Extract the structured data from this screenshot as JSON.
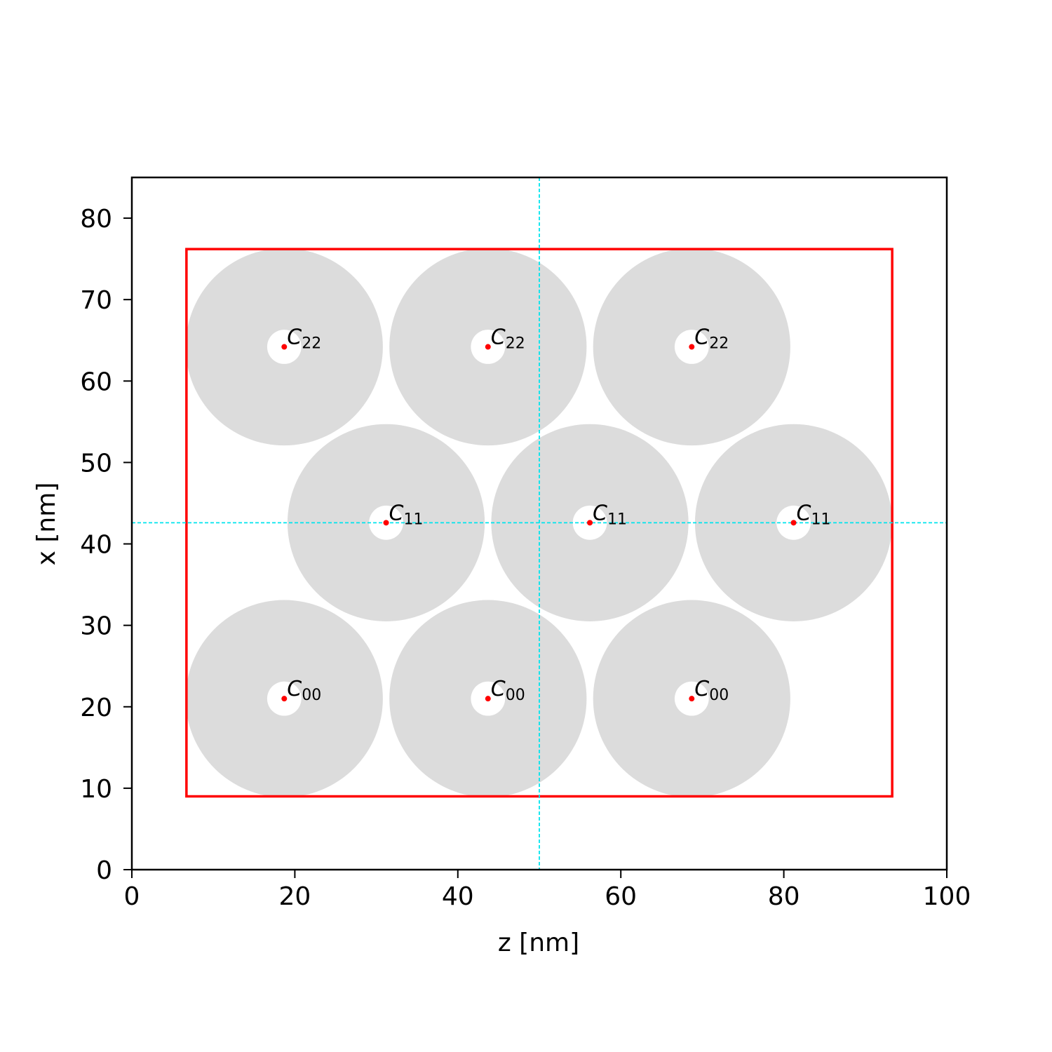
{
  "chart_data": {
    "type": "scatter",
    "xlabel": "z [nm]",
    "ylabel": "x [nm]",
    "xlim": [
      0,
      100
    ],
    "ylim": [
      0,
      85
    ],
    "xticks": [
      0,
      20,
      40,
      60,
      80,
      100
    ],
    "yticks": [
      0,
      10,
      20,
      30,
      40,
      50,
      60,
      70,
      80
    ],
    "grid": false,
    "legend": "none",
    "bounding_box": {
      "z": [
        6.7,
        93.3
      ],
      "x": [
        9.0,
        76.2
      ],
      "color": "#ff0000"
    },
    "guide_lines": {
      "z": 50,
      "x": 42.6,
      "color": "#00e5ee",
      "style": "dashed"
    },
    "particles": {
      "outer_radius": 12.1,
      "inner_radius": 2.1,
      "fill": "#dcdcdc",
      "center_color": "#ff0000",
      "points": [
        {
          "z": 18.7,
          "x": 64.2,
          "label": "C",
          "sub": "22"
        },
        {
          "z": 43.7,
          "x": 64.2,
          "label": "C",
          "sub": "22"
        },
        {
          "z": 68.7,
          "x": 64.2,
          "label": "C",
          "sub": "22"
        },
        {
          "z": 31.2,
          "x": 42.6,
          "label": "C",
          "sub": "11"
        },
        {
          "z": 56.2,
          "x": 42.6,
          "label": "C",
          "sub": "11"
        },
        {
          "z": 81.2,
          "x": 42.6,
          "label": "C",
          "sub": "11"
        },
        {
          "z": 18.7,
          "x": 21.0,
          "label": "C",
          "sub": "00"
        },
        {
          "z": 43.7,
          "x": 21.0,
          "label": "C",
          "sub": "00"
        },
        {
          "z": 68.7,
          "x": 21.0,
          "label": "C",
          "sub": "00"
        }
      ]
    }
  }
}
